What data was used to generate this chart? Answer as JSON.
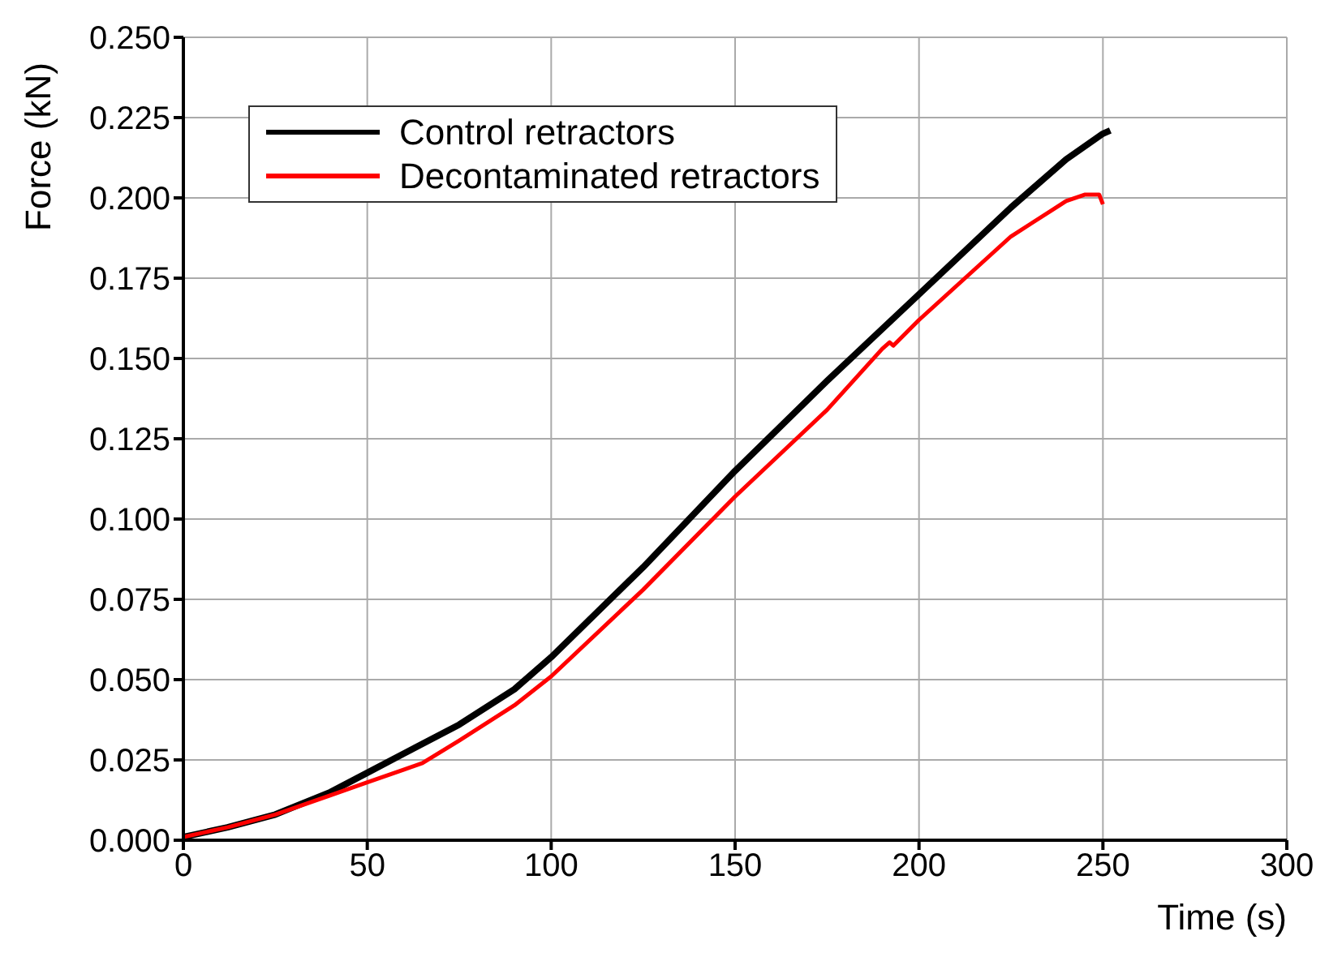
{
  "chart_data": {
    "type": "line",
    "xlabel": "Time (s)",
    "ylabel": "Force (kN)",
    "xlim": [
      0,
      300
    ],
    "xticks": [
      0,
      50,
      100,
      150,
      200,
      250,
      300
    ],
    "ylim": [
      0,
      0.25
    ],
    "yticks": [
      {
        "value": 0,
        "label": "0.000"
      },
      {
        "value": 0.025,
        "label": "0.025"
      },
      {
        "value": 0.05,
        "label": "0.050"
      },
      {
        "value": 0.075,
        "label": "0.075"
      },
      {
        "value": 0.1,
        "label": "0.100"
      },
      {
        "value": 0.125,
        "label": "0.125"
      },
      {
        "value": 0.15,
        "label": "0.150"
      },
      {
        "value": 0.175,
        "label": "0.175"
      },
      {
        "value": 0.2,
        "label": "0.200"
      },
      {
        "value": 0.225,
        "label": "0.225"
      },
      {
        "value": 0.25,
        "label": "0.250"
      }
    ],
    "grid": true,
    "legend": "top left",
    "marker": "none",
    "line_style": "solid",
    "series": [
      {
        "name": "Control retractors",
        "color": "#000000",
        "x": [
          0,
          12,
          25,
          40,
          50,
          60,
          75,
          90,
          100,
          125,
          150,
          175,
          200,
          225,
          240,
          250,
          252
        ],
        "values": [
          0.001,
          0.004,
          0.008,
          0.015,
          0.021,
          0.027,
          0.036,
          0.047,
          0.057,
          0.085,
          0.115,
          0.143,
          0.17,
          0.197,
          0.212,
          0.22,
          0.221
        ]
      },
      {
        "name": "Decontaminated retractors",
        "color": "#ff0000",
        "x": [
          0,
          12,
          25,
          40,
          50,
          60,
          65,
          75,
          90,
          100,
          125,
          150,
          175,
          190,
          192,
          193,
          200,
          225,
          240,
          245,
          249,
          250
        ],
        "values": [
          0.001,
          0.004,
          0.008,
          0.014,
          0.018,
          0.022,
          0.024,
          0.031,
          0.042,
          0.051,
          0.078,
          0.107,
          0.134,
          0.153,
          0.155,
          0.154,
          0.162,
          0.188,
          0.199,
          0.201,
          0.201,
          0.198
        ]
      }
    ]
  }
}
